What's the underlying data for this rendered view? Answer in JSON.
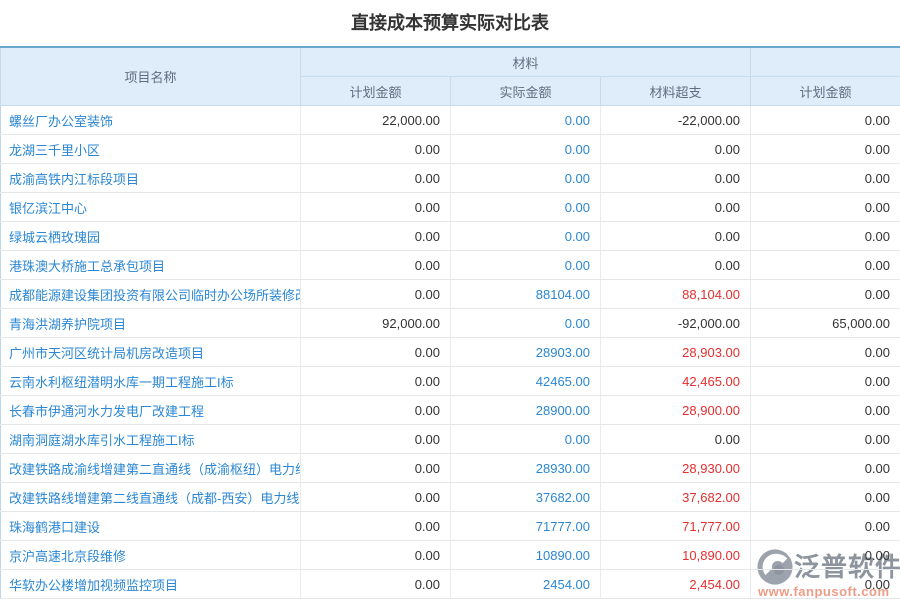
{
  "title": "直接成本预算实际对比表",
  "table": {
    "header": {
      "project": "项目名称",
      "material_group": "材料",
      "secondary_group": "",
      "sub": [
        "计划金额",
        "实际金额",
        "材料超支",
        "计划金额"
      ]
    },
    "rows": [
      {
        "name": "螺丝厂办公室装饰",
        "plan": "22,000.00",
        "actual": "0.00",
        "over": "-22,000.00",
        "plan2": "0.00"
      },
      {
        "name": "龙湖三千里小区",
        "plan": "0.00",
        "actual": "0.00",
        "over": "0.00",
        "plan2": "0.00"
      },
      {
        "name": "成渝高铁内江标段项目",
        "plan": "0.00",
        "actual": "0.00",
        "over": "0.00",
        "plan2": "0.00"
      },
      {
        "name": "银亿滨江中心",
        "plan": "0.00",
        "actual": "0.00",
        "over": "0.00",
        "plan2": "0.00"
      },
      {
        "name": "绿城云栖玫瑰园",
        "plan": "0.00",
        "actual": "0.00",
        "over": "0.00",
        "plan2": "0.00"
      },
      {
        "name": "港珠澳大桥施工总承包项目",
        "plan": "0.00",
        "actual": "0.00",
        "over": "0.00",
        "plan2": "0.00"
      },
      {
        "name": "成都能源建设集团投资有限公司临时办公场所装修改",
        "plan": "0.00",
        "actual": "88104.00",
        "over": "88,104.00",
        "plan2": "0.00"
      },
      {
        "name": "青海洪湖养护院项目",
        "plan": "92,000.00",
        "actual": "0.00",
        "over": "-92,000.00",
        "plan2": "65,000.00"
      },
      {
        "name": "广州市天河区统计局机房改造项目",
        "plan": "0.00",
        "actual": "28903.00",
        "over": "28,903.00",
        "plan2": "0.00"
      },
      {
        "name": "云南水利枢纽潜明水库一期工程施工I标",
        "plan": "0.00",
        "actual": "42465.00",
        "over": "42,465.00",
        "plan2": "0.00"
      },
      {
        "name": "长春市伊通河水力发电厂改建工程",
        "plan": "0.00",
        "actual": "28900.00",
        "over": "28,900.00",
        "plan2": "0.00"
      },
      {
        "name": "湖南洞庭湖水库引水工程施工I标",
        "plan": "0.00",
        "actual": "0.00",
        "over": "0.00",
        "plan2": "0.00"
      },
      {
        "name": "改建铁路成渝线增建第二直通线（成渝枢纽）电力线",
        "plan": "0.00",
        "actual": "28930.00",
        "over": "28,930.00",
        "plan2": "0.00"
      },
      {
        "name": "改建铁路线增建第二线直通线（成都-西安）电力线",
        "plan": "0.00",
        "actual": "37682.00",
        "over": "37,682.00",
        "plan2": "0.00"
      },
      {
        "name": "珠海鹤港口建设",
        "plan": "0.00",
        "actual": "71777.00",
        "over": "71,777.00",
        "plan2": "0.00"
      },
      {
        "name": "京沪高速北京段维修",
        "plan": "0.00",
        "actual": "10890.00",
        "over": "10,890.00",
        "plan2": "0.00"
      },
      {
        "name": "华软办公楼增加视频监控项目",
        "plan": "0.00",
        "actual": "2454.00",
        "over": "2,454.00",
        "plan2": "0.00"
      }
    ]
  },
  "watermark": {
    "brand": "泛普软件",
    "url": "www.fanpusoft.com",
    "logo_icon": "fanpu-logo-icon"
  },
  "colors": {
    "header_bg": "#dfecf9",
    "header_text": "#5f6e7e",
    "table_top_border": "#6ba6d1",
    "link_blue": "#2b87d3",
    "overspend_red": "#e62e2e",
    "value_dark": "#333333",
    "watermark_grey": "#7d858f",
    "watermark_orange": "#ec9c86"
  }
}
